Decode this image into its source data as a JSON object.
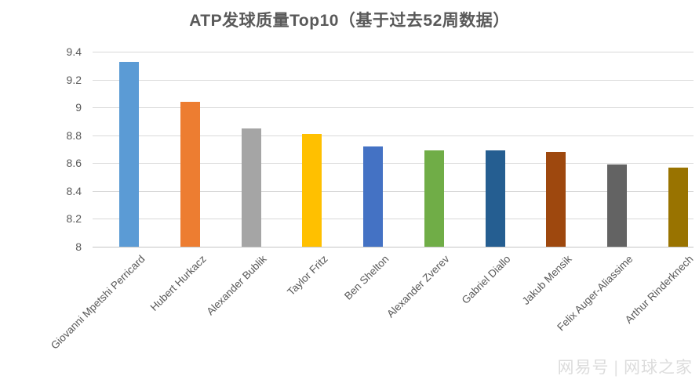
{
  "title": "ATP发球质量Top10（基于过去52周数据）",
  "watermark": {
    "platform": "网易号",
    "separator": "|",
    "account": "网球之家"
  },
  "colors": {
    "title_text": "#595959",
    "axis_text": "#595959",
    "gridline": "#d9d9d9",
    "axis_line": "#c6c6c6",
    "background": "#ffffff",
    "watermark_text": "#dcdcdc"
  },
  "chart_data": {
    "type": "bar",
    "title": "ATP发球质量Top10（基于过去52周数据）",
    "categories": [
      "Giovanni Mpetshi Perricard",
      "Hubert Hurkacz",
      "Alexander Bublik",
      "Taylor Fritz",
      "Ben Shelton",
      "Alexander Zverev",
      "Gabriel Diallo",
      "Jakub Mensik",
      "Felix Auger-Aliassime",
      "Arthur Rinderknech"
    ],
    "values": [
      9.33,
      9.04,
      8.85,
      8.81,
      8.72,
      8.69,
      8.69,
      8.68,
      8.59,
      8.57
    ],
    "bar_colors": [
      "#5b9bd5",
      "#ed7d31",
      "#a5a5a5",
      "#ffc000",
      "#4472c4",
      "#70ad47",
      "#255e91",
      "#9e480e",
      "#636363",
      "#997300"
    ],
    "xlabel": "",
    "ylabel": "",
    "ylim": [
      8,
      9.4
    ],
    "yticks": [
      9.4,
      9.2,
      9.0,
      8.8,
      8.6,
      8.4,
      8.2,
      8.0
    ],
    "ytick_labels": [
      "9.4",
      "9.2",
      "9",
      "8.8",
      "8.6",
      "8.4",
      "8.2",
      "8"
    ],
    "grid": true,
    "legend": "none",
    "x_labels_rotation_deg": 45
  }
}
